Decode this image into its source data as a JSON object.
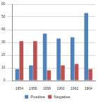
{
  "chart_data": {
    "type": "bar",
    "categories": [
      "1954",
      "1956",
      "1958",
      "1960",
      "1962",
      "1964"
    ],
    "series": [
      {
        "name": "Positive",
        "color": "#4f81bd",
        "values": [
          9,
          12,
          37,
          33,
          34,
          53
        ]
      },
      {
        "name": "Negative",
        "color": "#c0504d",
        "values": [
          31,
          31,
          8,
          12,
          13,
          9
        ]
      }
    ],
    "ylim": [
      0,
      60
    ],
    "yticks": [
      0,
      10,
      20,
      30,
      40,
      50,
      60
    ],
    "grid": true,
    "legend": "bottom"
  }
}
